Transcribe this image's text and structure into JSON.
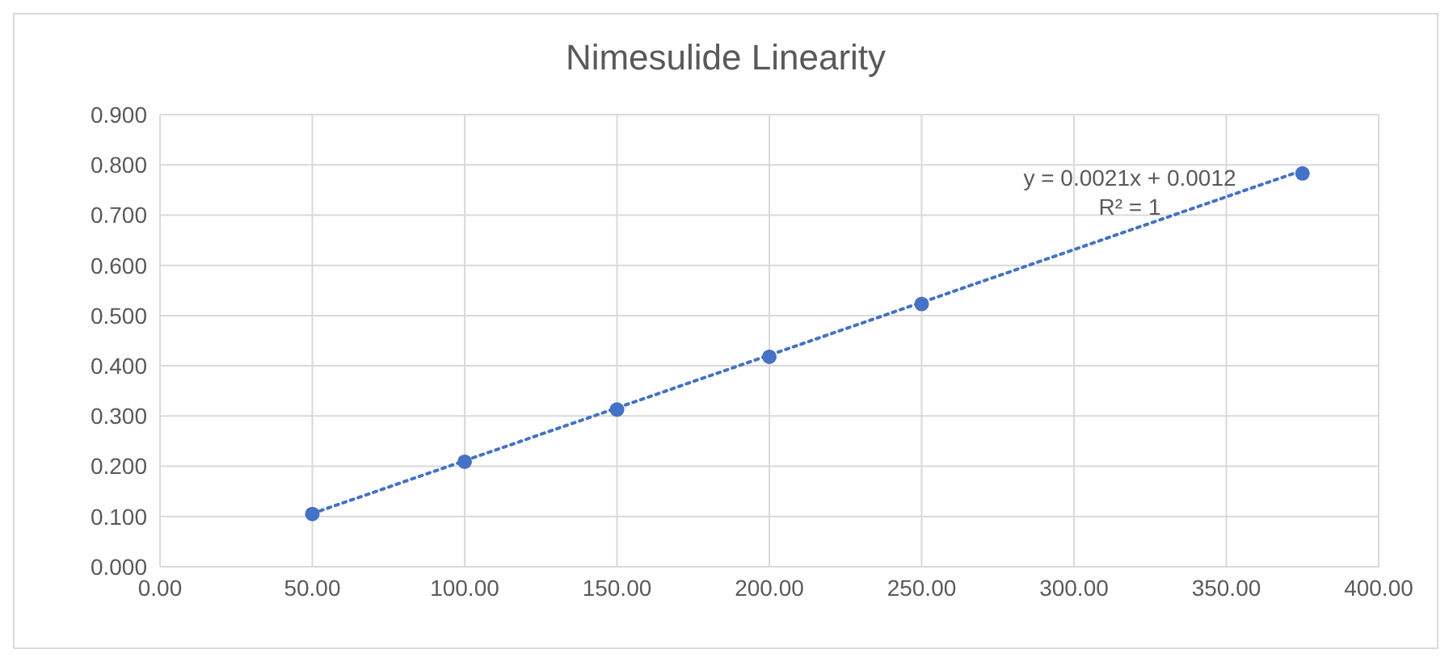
{
  "chart_data": {
    "type": "scatter",
    "title": "Nimesulide Linearity",
    "x": [
      50,
      100,
      150,
      200,
      250,
      375
    ],
    "series": [
      {
        "color": "#4472c4",
        "values": [
          0.105,
          0.209,
          0.313,
          0.418,
          0.523,
          0.783
        ],
        "marker": "circle"
      },
      {
        "type": "line",
        "color": "#4472c4",
        "x": [
          50,
          375
        ],
        "values": [
          0.106,
          0.789
        ],
        "line_style": "dotted",
        "marker": "none"
      }
    ],
    "xlim": [
      0,
      400
    ],
    "xticks": [
      {
        "value": 0,
        "label": "0.00"
      },
      {
        "value": 50,
        "label": "50.00"
      },
      {
        "value": 100,
        "label": "100.00"
      },
      {
        "value": 150,
        "label": "150.00"
      },
      {
        "value": 200,
        "label": "200.00"
      },
      {
        "value": 250,
        "label": "250.00"
      },
      {
        "value": 300,
        "label": "300.00"
      },
      {
        "value": 350,
        "label": "350.00"
      },
      {
        "value": 400,
        "label": "400.00"
      }
    ],
    "ylim": [
      0,
      0.9
    ],
    "yticks": [
      {
        "value": 0,
        "label": "0.000"
      },
      {
        "value": 0.1,
        "label": "0.100"
      },
      {
        "value": 0.2,
        "label": "0.200"
      },
      {
        "value": 0.3,
        "label": "0.300"
      },
      {
        "value": 0.4,
        "label": "0.400"
      },
      {
        "value": 0.5,
        "label": "0.500"
      },
      {
        "value": 0.6,
        "label": "0.600"
      },
      {
        "value": 0.7,
        "label": "0.700"
      },
      {
        "value": 0.8,
        "label": "0.800"
      },
      {
        "value": 0.9,
        "label": "0.900"
      }
    ],
    "grid": true,
    "legend": false,
    "annotations": [
      "y = 0.0021x + 0.0012",
      "R² = 1"
    ]
  }
}
